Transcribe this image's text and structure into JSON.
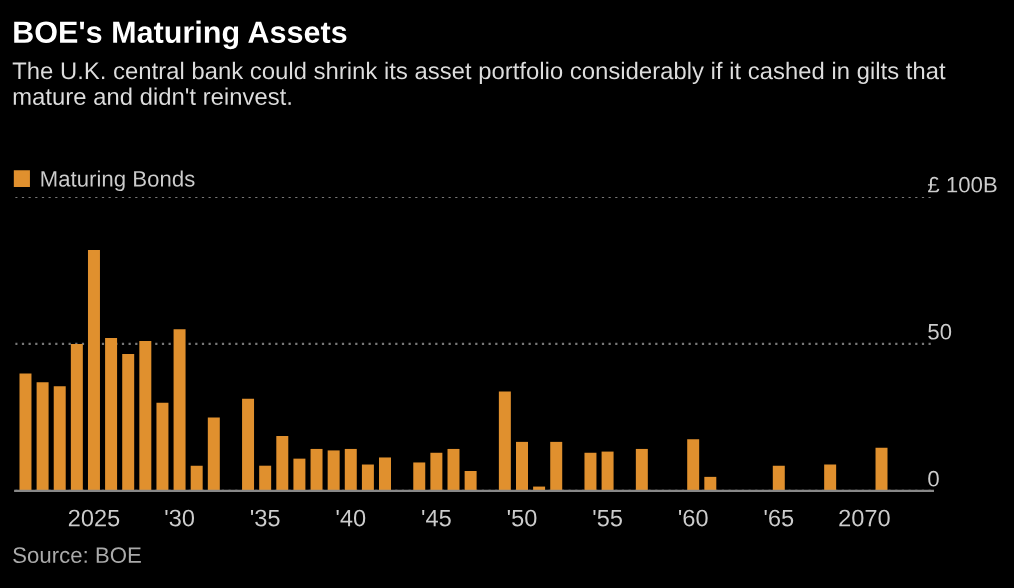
{
  "chart_data": {
    "type": "bar",
    "title": "BOE's Maturing Assets",
    "subtitle": "The U.K. central bank could shrink its asset portfolio considerably if it cashed in gilts that mature and didn't reinvest.",
    "x": [
      2021,
      2022,
      2023,
      2024,
      2025,
      2026,
      2027,
      2028,
      2029,
      2030,
      2031,
      2032,
      2033,
      2034,
      2035,
      2036,
      2037,
      2038,
      2039,
      2040,
      2041,
      2042,
      2043,
      2044,
      2045,
      2046,
      2047,
      2048,
      2049,
      2050,
      2051,
      2052,
      2053,
      2054,
      2055,
      2056,
      2057,
      2058,
      2059,
      2060,
      2061,
      2062,
      2063,
      2064,
      2065,
      2066,
      2067,
      2068,
      2069,
      2070,
      2071
    ],
    "series": [
      {
        "name": "Maturing Bonds",
        "color": "#e0902e",
        "values": [
          40,
          37,
          35.6,
          50,
          82,
          52,
          46.6,
          51,
          30,
          55,
          8.6,
          25,
          0,
          31.4,
          8.6,
          18.7,
          11,
          14.3,
          13.8,
          14.3,
          9,
          11.4,
          0,
          9.7,
          13,
          14.3,
          6.8,
          0,
          33.8,
          16.7,
          1.5,
          16.7,
          0,
          13,
          13.4,
          0,
          14.3,
          0,
          0,
          17.6,
          4.8,
          0,
          0,
          0,
          8.6,
          0,
          0,
          9,
          0,
          0,
          14.7
        ]
      }
    ],
    "xlim": [
      2020.4,
      2074
    ],
    "xticks": [
      2025,
      {
        "value": 2030,
        "label": "'30"
      },
      {
        "value": 2035,
        "label": "'35"
      },
      {
        "value": 2040,
        "label": "'40"
      },
      {
        "value": 2045,
        "label": "'45"
      },
      {
        "value": 2050,
        "label": "'50"
      },
      {
        "value": 2055,
        "label": "'55"
      },
      {
        "value": 2060,
        "label": "'60"
      },
      {
        "value": 2065,
        "label": "'65"
      },
      2070
    ],
    "ylim": [
      0,
      100
    ],
    "yticks": [
      0,
      50,
      {
        "value": 100,
        "label": "£ 100B"
      }
    ],
    "grid": "y",
    "legend": "top left",
    "annotations": [
      "Source: BOE"
    ]
  }
}
